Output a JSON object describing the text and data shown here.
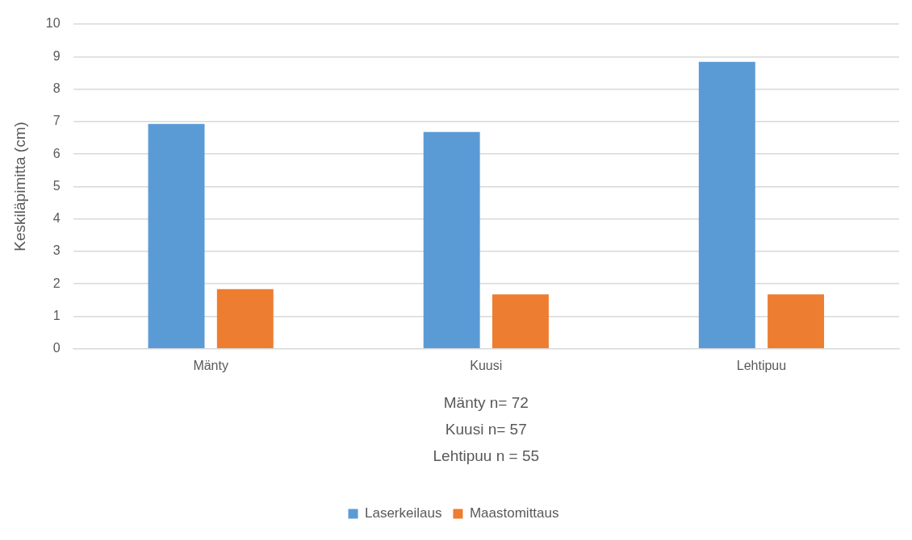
{
  "chart_data": {
    "type": "bar",
    "ylabel": "Keskiläpimitta (cm)",
    "categories": [
      "Mänty",
      "Kuusi",
      "Lehtipuu"
    ],
    "series": [
      {
        "name": "Laserkeilaus",
        "color": "#5b9bd5",
        "values": [
          6.93,
          6.68,
          8.84
        ]
      },
      {
        "name": "Maastomittaus",
        "color": "#ed7d31",
        "values": [
          1.84,
          1.68,
          1.68
        ]
      }
    ],
    "ylim": [
      0,
      10
    ],
    "yticks": [
      0,
      1,
      2,
      3,
      4,
      5,
      6,
      7,
      8,
      9,
      10
    ],
    "grid": "y",
    "legend": "bottom",
    "annotations": [
      "Mänty n= 72",
      "Kuusi n= 57",
      "Lehtipuu n = 55"
    ]
  }
}
